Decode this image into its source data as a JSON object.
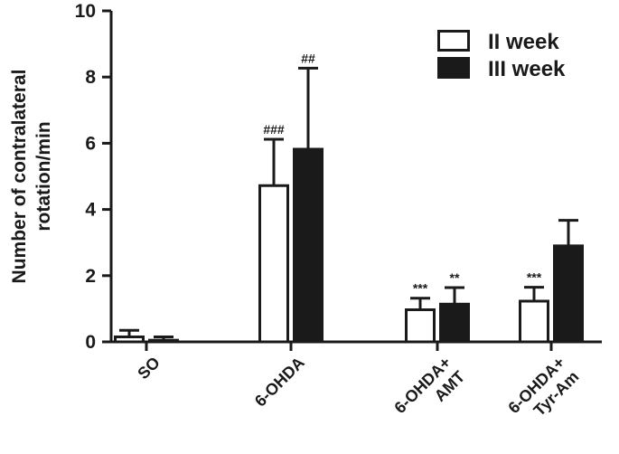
{
  "chart_data": {
    "type": "bar",
    "title": "",
    "ylabel": "Number of contralateral rotation/min",
    "ylabel_lines": [
      "Number of contralateral",
      "rotation/min"
    ],
    "xlabel": "",
    "ylim": [
      0,
      10
    ],
    "yticks": [
      0,
      2,
      4,
      6,
      8,
      10
    ],
    "categories": [
      {
        "lines": [
          "SO"
        ]
      },
      {
        "lines": [
          "6-OHDA"
        ]
      },
      {
        "lines": [
          "6-OHDA+",
          "AMT"
        ]
      },
      {
        "lines": [
          "6-OHDA+",
          "Tyr-Am"
        ]
      }
    ],
    "series": [
      {
        "name": "II week",
        "fill": "#ffffff",
        "values": [
          0.15,
          4.72,
          0.97,
          1.23
        ],
        "errors": [
          0.2,
          1.4,
          0.35,
          0.42
        ],
        "annotations": [
          "",
          "###",
          "***",
          "***"
        ]
      },
      {
        "name": "III week",
        "fill": "#1a1a1a",
        "values": [
          0.05,
          5.82,
          1.14,
          2.9
        ],
        "errors": [
          0.1,
          2.45,
          0.5,
          0.77
        ],
        "annotations": [
          "",
          "##",
          "**",
          ""
        ]
      }
    ],
    "legend_position": "top-right",
    "grid": false
  }
}
